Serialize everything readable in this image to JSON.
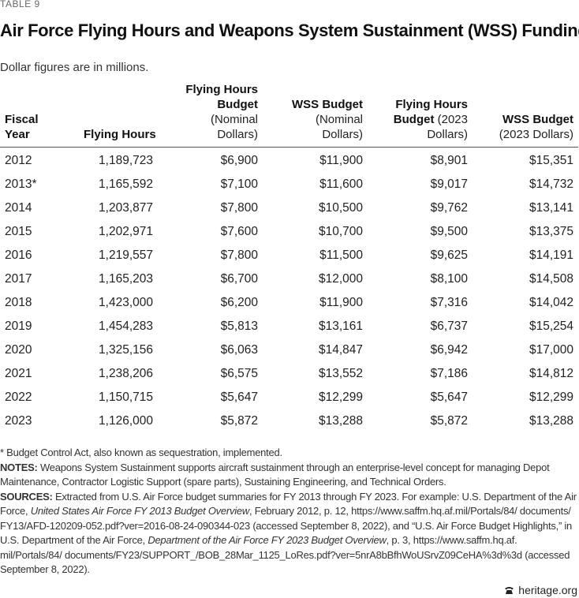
{
  "table_label": "TABLE 9",
  "title": "Air Force Flying Hours and Weapons System Sustainment (WSS) Funding",
  "subtitle": "Dollar figures are in millions.",
  "table": {
    "columns": [
      {
        "title": "Fiscal Year"
      },
      {
        "title": "Flying Hours"
      },
      {
        "title": "Flying Hours Budget",
        "unit": "(Nominal Dollars)"
      },
      {
        "title": "WSS Budget",
        "unit": "(Nominal Dollars)"
      },
      {
        "title": "Flying Hours Budget",
        "unit": "(2023 Dollars)"
      },
      {
        "title": "WSS Budget",
        "unit": "(2023 Dollars)"
      }
    ],
    "rows": [
      [
        "2012",
        "1,189,723",
        "$6,900",
        "$11,900",
        "$8,901",
        "$15,351"
      ],
      [
        "2013*",
        "1,165,592",
        "$7,100",
        "$11,600",
        "$9,017",
        "$14,732"
      ],
      [
        "2014",
        "1,203,877",
        "$7,800",
        "$10,500",
        "$9,762",
        "$13,141"
      ],
      [
        "2015",
        "1,202,971",
        "$7,600",
        "$10,700",
        "$9,500",
        "$13,375"
      ],
      [
        "2016",
        "1,219,557",
        "$7,800",
        "$11,500",
        "$9,625",
        "$14,191"
      ],
      [
        "2017",
        "1,165,203",
        "$6,700",
        "$12,000",
        "$8,100",
        "$14,508"
      ],
      [
        "2018",
        "1,423,000",
        "$6,200",
        "$11,900",
        "$7,316",
        "$14,042"
      ],
      [
        "2019",
        "1,454,283",
        "$5,813",
        "$13,161",
        "$6,737",
        "$15,254"
      ],
      [
        "2020",
        "1,325,156",
        "$6,063",
        "$14,847",
        "$6,942",
        "$17,000"
      ],
      [
        "2021",
        "1,238,206",
        "$6,575",
        "$13,552",
        "$7,186",
        "$14,812"
      ],
      [
        "2022",
        "1,150,715",
        "$5,647",
        "$12,299",
        "$5,647",
        "$12,299"
      ],
      [
        "2023",
        "1,126,000",
        "$5,872",
        "$13,288",
        "$5,872",
        "$13,288"
      ]
    ]
  },
  "notes": [
    {
      "parts": [
        {
          "text": "* Budget Control Act, also known as sequestration, implemented."
        }
      ]
    },
    {
      "label": "NOTES:",
      "parts": [
        {
          "text": " Weapons System Sustainment supports aircraft sustainment through an enterprise-level concept for managing Depot Maintenance, Contractor Logistic Support (spare parts), Sustaining Engineering, and Technical Orders."
        }
      ]
    },
    {
      "label": "SOURCES:",
      "parts": [
        {
          "text": " Extracted from U.S. Air Force budget summaries for FY 2013 through FY 2023. For example: U.S. Department of the Air Force, "
        },
        {
          "text": "United States Air Force FY 2013 Budget Overview",
          "italic": true
        },
        {
          "text": ", February 2012, p. 12, https://www.saffm.hq.af.mil/Portals/84/ documents/ FY13/AFD-120209-052.pdf?ver=2016-08-24-090344-023 (accessed September 8, 2022), and “U.S. Air Force Budget Highlights,” in U.S. Department of the Air Force, "
        },
        {
          "text": "Department of the Air Force FY 2023 Budget Overview",
          "italic": true
        },
        {
          "text": ", p. 3, https://www.saffm.hq.af. mil/Portals/84/ documents/FY23/SUPPORT_/BOB_28Mar_1125_LoRes.pdf?ver=5nrA8bBfhWoUSrvZ09CeHA%3d%3d (accessed September 8, 2022)."
        }
      ]
    }
  ],
  "footer": "heritage.org"
}
